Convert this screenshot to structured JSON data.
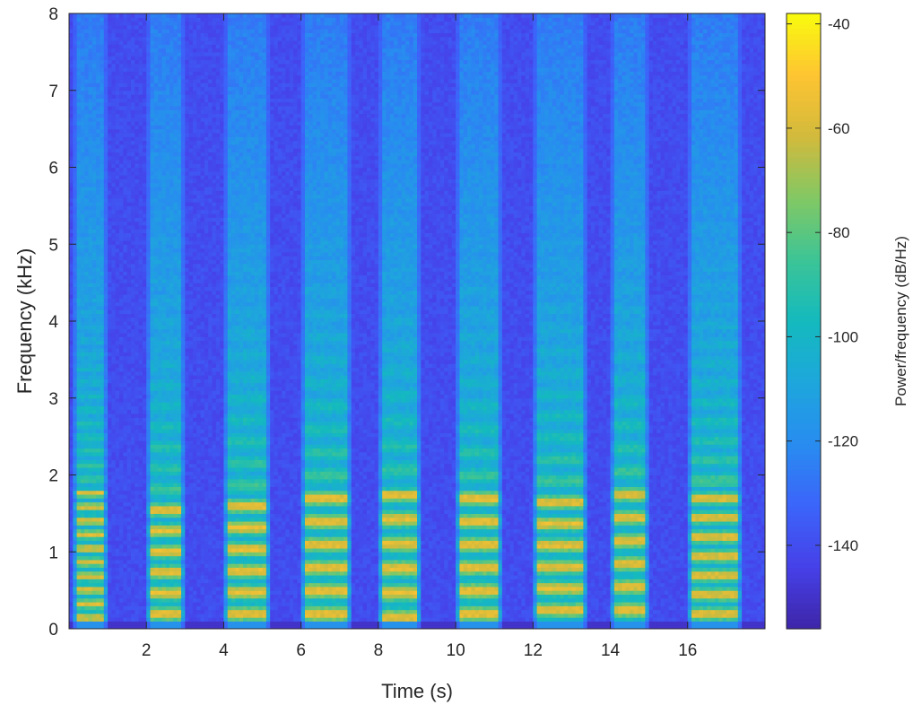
{
  "chart_data": {
    "type": "heatmap",
    "title": "",
    "xlabel": "Time (s)",
    "ylabel": "Frequency (kHz)",
    "colorbar_label": "Power/frequency (dB/Hz)",
    "xlim": [
      0,
      18
    ],
    "ylim": [
      0,
      8
    ],
    "clim": [
      -156,
      -38
    ],
    "colormap": "parula",
    "grid": false,
    "x_ticks": [
      2,
      4,
      6,
      8,
      10,
      12,
      14,
      16
    ],
    "x_tick_labels": [
      "2",
      "4",
      "6",
      "8",
      "10",
      "12",
      "14",
      "16"
    ],
    "y_ticks": [
      0,
      1,
      2,
      3,
      4,
      5,
      6,
      7,
      8
    ],
    "y_tick_labels": [
      "0",
      "1",
      "2",
      "3",
      "4",
      "5",
      "6",
      "7",
      "8"
    ],
    "colorbar_ticks": [
      -40,
      -60,
      -80,
      -100,
      -120,
      -140
    ],
    "colorbar_tick_labels": [
      "-40",
      "-60",
      "-80",
      "-100",
      "-120",
      "-140"
    ],
    "background_level_db": -140,
    "segments": [
      {
        "t_start": 0.1,
        "t_end": 1.0,
        "f0_khz": 0.15,
        "harmonic_spacing_khz": 0.18,
        "strong_up_to_khz": 1.8,
        "peak_db": -58
      },
      {
        "t_start": 2.0,
        "t_end": 3.0,
        "f0_khz": 0.2,
        "harmonic_spacing_khz": 0.27,
        "strong_up_to_khz": 1.7,
        "peak_db": -55
      },
      {
        "t_start": 4.0,
        "t_end": 5.2,
        "f0_khz": 0.2,
        "harmonic_spacing_khz": 0.28,
        "strong_up_to_khz": 1.8,
        "peak_db": -55
      },
      {
        "t_start": 6.0,
        "t_end": 7.3,
        "f0_khz": 0.2,
        "harmonic_spacing_khz": 0.3,
        "strong_up_to_khz": 1.9,
        "peak_db": -55
      },
      {
        "t_start": 8.0,
        "t_end": 9.1,
        "f0_khz": 0.15,
        "harmonic_spacing_khz": 0.32,
        "strong_up_to_khz": 1.8,
        "peak_db": -56
      },
      {
        "t_start": 10.0,
        "t_end": 11.2,
        "f0_khz": 0.2,
        "harmonic_spacing_khz": 0.3,
        "strong_up_to_khz": 1.8,
        "peak_db": -55
      },
      {
        "t_start": 12.0,
        "t_end": 13.4,
        "f0_khz": 0.25,
        "harmonic_spacing_khz": 0.28,
        "strong_up_to_khz": 1.8,
        "peak_db": -56
      },
      {
        "t_start": 14.0,
        "t_end": 15.0,
        "f0_khz": 0.25,
        "harmonic_spacing_khz": 0.3,
        "strong_up_to_khz": 1.9,
        "peak_db": -57
      },
      {
        "t_start": 16.0,
        "t_end": 17.4,
        "f0_khz": 0.2,
        "harmonic_spacing_khz": 0.25,
        "strong_up_to_khz": 1.9,
        "peak_db": -56
      }
    ]
  }
}
